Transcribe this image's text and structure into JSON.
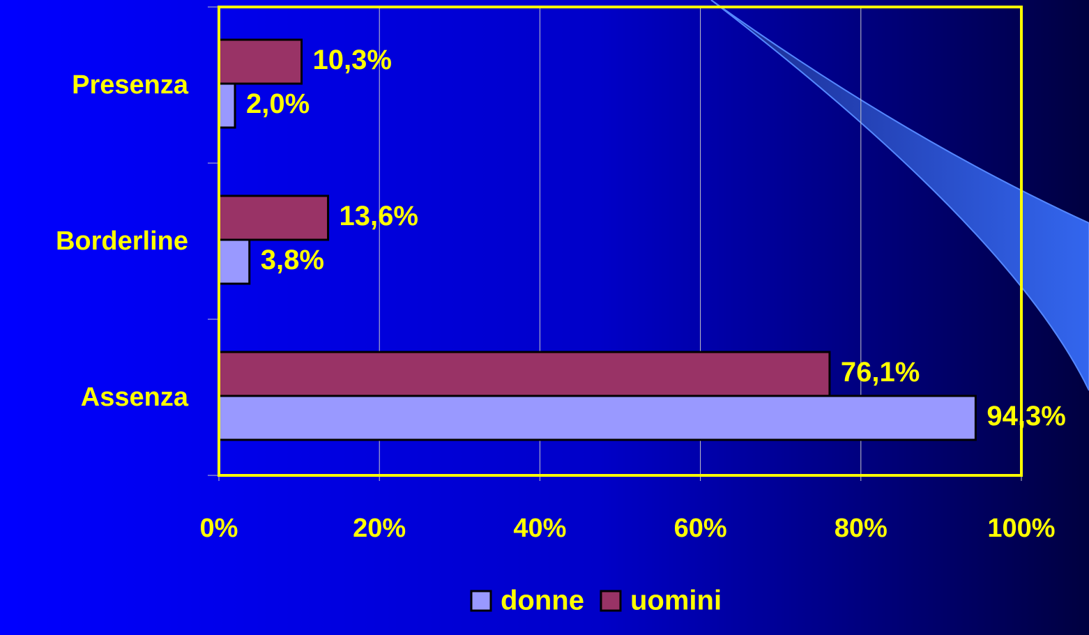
{
  "chart_data": {
    "type": "hbar",
    "categories": [
      "Presenza",
      "Borderline",
      "Assenza"
    ],
    "series": [
      {
        "name": "donne",
        "color": "#9999ff",
        "values": [
          2.0,
          3.8,
          94.3
        ],
        "value_labels": [
          "2,0%",
          "3,8%",
          "94,3%"
        ]
      },
      {
        "name": "uomini",
        "color": "#993366",
        "values": [
          10.3,
          13.6,
          76.1
        ],
        "value_labels": [
          "10,3%",
          "13,6%",
          "76,1%"
        ]
      }
    ],
    "xlim": [
      0,
      100
    ],
    "xticks": [
      {
        "value": 0,
        "label": "0%"
      },
      {
        "value": 20,
        "label": "20%"
      },
      {
        "value": 40,
        "label": "40%"
      },
      {
        "value": 60,
        "label": "60%"
      },
      {
        "value": 80,
        "label": "80%"
      },
      {
        "value": 100,
        "label": "100%"
      }
    ],
    "grid": true,
    "legend": "bottom"
  }
}
